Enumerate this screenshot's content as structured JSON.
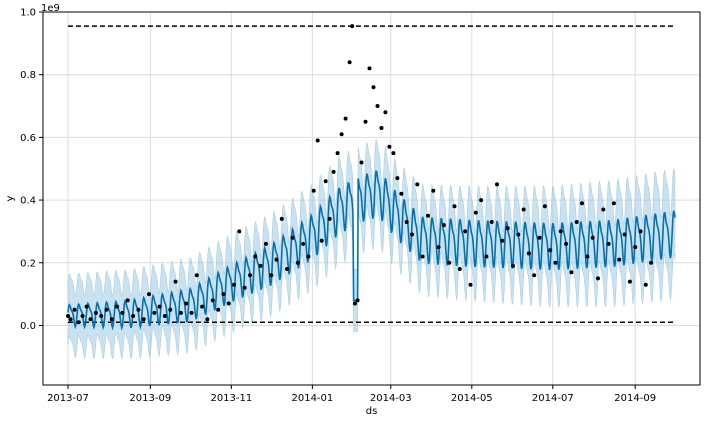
{
  "chart_data": {
    "type": "line",
    "title": "",
    "xlabel": "ds",
    "ylabel": "y",
    "y_offset_label": "1e9",
    "xlim": [
      "2013-07-01",
      "2014-10-01"
    ],
    "ylim": [
      -0.19,
      1.0
    ],
    "grid": true,
    "x_ticks": [
      {
        "date": "2013-07-01",
        "label": "2013-07"
      },
      {
        "date": "2013-09-01",
        "label": "2013-09"
      },
      {
        "date": "2013-11-01",
        "label": "2013-11"
      },
      {
        "date": "2014-01-01",
        "label": "2014-01"
      },
      {
        "date": "2014-03-01",
        "label": "2014-03"
      },
      {
        "date": "2014-05-01",
        "label": "2014-05"
      },
      {
        "date": "2014-07-01",
        "label": "2014-07"
      },
      {
        "date": "2014-09-01",
        "label": "2014-09"
      }
    ],
    "y_ticks": [
      {
        "value": 0.0,
        "label": "0.0"
      },
      {
        "value": 0.2,
        "label": "0.2"
      },
      {
        "value": 0.4,
        "label": "0.4"
      },
      {
        "value": 0.6,
        "label": "0.6"
      },
      {
        "value": 0.8,
        "label": "0.8"
      },
      {
        "value": 1.0,
        "label": "1.0"
      }
    ],
    "cap": 0.955,
    "floor": 0.01,
    "colors": {
      "forecast": "#0072B2",
      "band": "#9ec9e2",
      "points": "#000000",
      "limits": "#000000",
      "grid": "#dddddd"
    },
    "observed": [
      {
        "x": "2013-07-01",
        "y": 0.03
      },
      {
        "x": "2013-07-03",
        "y": 0.02
      },
      {
        "x": "2013-07-06",
        "y": 0.05
      },
      {
        "x": "2013-07-09",
        "y": 0.01
      },
      {
        "x": "2013-07-12",
        "y": 0.03
      },
      {
        "x": "2013-07-15",
        "y": 0.06
      },
      {
        "x": "2013-07-18",
        "y": 0.02
      },
      {
        "x": "2013-07-22",
        "y": 0.04
      },
      {
        "x": "2013-07-26",
        "y": 0.03
      },
      {
        "x": "2013-07-30",
        "y": 0.05
      },
      {
        "x": "2013-08-03",
        "y": 0.02
      },
      {
        "x": "2013-08-07",
        "y": 0.06
      },
      {
        "x": "2013-08-11",
        "y": 0.04
      },
      {
        "x": "2013-08-15",
        "y": 0.08
      },
      {
        "x": "2013-08-19",
        "y": 0.03
      },
      {
        "x": "2013-08-23",
        "y": 0.05
      },
      {
        "x": "2013-08-27",
        "y": 0.02
      },
      {
        "x": "2013-08-31",
        "y": 0.1
      },
      {
        "x": "2013-09-04",
        "y": 0.04
      },
      {
        "x": "2013-09-08",
        "y": 0.06
      },
      {
        "x": "2013-09-12",
        "y": 0.03
      },
      {
        "x": "2013-09-16",
        "y": 0.05
      },
      {
        "x": "2013-09-20",
        "y": 0.14
      },
      {
        "x": "2013-09-24",
        "y": 0.04
      },
      {
        "x": "2013-09-28",
        "y": 0.07
      },
      {
        "x": "2013-10-02",
        "y": 0.04
      },
      {
        "x": "2013-10-06",
        "y": 0.16
      },
      {
        "x": "2013-10-10",
        "y": 0.06
      },
      {
        "x": "2013-10-14",
        "y": 0.02
      },
      {
        "x": "2013-10-18",
        "y": 0.08
      },
      {
        "x": "2013-10-22",
        "y": 0.05
      },
      {
        "x": "2013-10-26",
        "y": 0.1
      },
      {
        "x": "2013-10-30",
        "y": 0.07
      },
      {
        "x": "2013-11-03",
        "y": 0.13
      },
      {
        "x": "2013-11-07",
        "y": 0.3
      },
      {
        "x": "2013-11-11",
        "y": 0.12
      },
      {
        "x": "2013-11-15",
        "y": 0.16
      },
      {
        "x": "2013-11-19",
        "y": 0.22
      },
      {
        "x": "2013-11-23",
        "y": 0.19
      },
      {
        "x": "2013-11-27",
        "y": 0.26
      },
      {
        "x": "2013-12-01",
        "y": 0.16
      },
      {
        "x": "2013-12-05",
        "y": 0.21
      },
      {
        "x": "2013-12-09",
        "y": 0.34
      },
      {
        "x": "2013-12-13",
        "y": 0.18
      },
      {
        "x": "2013-12-17",
        "y": 0.28
      },
      {
        "x": "2013-12-21",
        "y": 0.2
      },
      {
        "x": "2013-12-25",
        "y": 0.26
      },
      {
        "x": "2013-12-29",
        "y": 0.22
      },
      {
        "x": "2014-01-02",
        "y": 0.43
      },
      {
        "x": "2014-01-05",
        "y": 0.59
      },
      {
        "x": "2014-01-08",
        "y": 0.27
      },
      {
        "x": "2014-01-11",
        "y": 0.46
      },
      {
        "x": "2014-01-14",
        "y": 0.34
      },
      {
        "x": "2014-01-17",
        "y": 0.49
      },
      {
        "x": "2014-01-20",
        "y": 0.55
      },
      {
        "x": "2014-01-23",
        "y": 0.61
      },
      {
        "x": "2014-01-26",
        "y": 0.66
      },
      {
        "x": "2014-01-29",
        "y": 0.84
      },
      {
        "x": "2014-01-31",
        "y": 0.955
      },
      {
        "x": "2014-02-02",
        "y": 0.07
      },
      {
        "x": "2014-02-04",
        "y": 0.08
      },
      {
        "x": "2014-02-07",
        "y": 0.52
      },
      {
        "x": "2014-02-10",
        "y": 0.65
      },
      {
        "x": "2014-02-13",
        "y": 0.82
      },
      {
        "x": "2014-02-16",
        "y": 0.76
      },
      {
        "x": "2014-02-19",
        "y": 0.7
      },
      {
        "x": "2014-02-22",
        "y": 0.63
      },
      {
        "x": "2014-02-25",
        "y": 0.68
      },
      {
        "x": "2014-02-28",
        "y": 0.57
      },
      {
        "x": "2014-03-03",
        "y": 0.55
      },
      {
        "x": "2014-03-06",
        "y": 0.47
      },
      {
        "x": "2014-03-09",
        "y": 0.42
      },
      {
        "x": "2014-03-13",
        "y": 0.33
      },
      {
        "x": "2014-03-17",
        "y": 0.29
      },
      {
        "x": "2014-03-21",
        "y": 0.45
      },
      {
        "x": "2014-03-25",
        "y": 0.22
      },
      {
        "x": "2014-03-29",
        "y": 0.35
      },
      {
        "x": "2014-04-02",
        "y": 0.43
      },
      {
        "x": "2014-04-06",
        "y": 0.25
      },
      {
        "x": "2014-04-10",
        "y": 0.32
      },
      {
        "x": "2014-04-14",
        "y": 0.2
      },
      {
        "x": "2014-04-18",
        "y": 0.38
      },
      {
        "x": "2014-04-22",
        "y": 0.18
      },
      {
        "x": "2014-04-26",
        "y": 0.3
      },
      {
        "x": "2014-04-30",
        "y": 0.13
      },
      {
        "x": "2014-05-04",
        "y": 0.36
      },
      {
        "x": "2014-05-08",
        "y": 0.4
      },
      {
        "x": "2014-05-12",
        "y": 0.22
      },
      {
        "x": "2014-05-16",
        "y": 0.33
      },
      {
        "x": "2014-05-20",
        "y": 0.45
      },
      {
        "x": "2014-05-24",
        "y": 0.27
      },
      {
        "x": "2014-05-28",
        "y": 0.31
      },
      {
        "x": "2014-06-01",
        "y": 0.19
      },
      {
        "x": "2014-06-05",
        "y": 0.29
      },
      {
        "x": "2014-06-09",
        "y": 0.37
      },
      {
        "x": "2014-06-13",
        "y": 0.23
      },
      {
        "x": "2014-06-17",
        "y": 0.16
      },
      {
        "x": "2014-06-21",
        "y": 0.28
      },
      {
        "x": "2014-06-25",
        "y": 0.38
      },
      {
        "x": "2014-06-29",
        "y": 0.24
      },
      {
        "x": "2014-07-03",
        "y": 0.2
      },
      {
        "x": "2014-07-07",
        "y": 0.3
      },
      {
        "x": "2014-07-11",
        "y": 0.26
      },
      {
        "x": "2014-07-15",
        "y": 0.17
      },
      {
        "x": "2014-07-19",
        "y": 0.33
      },
      {
        "x": "2014-07-23",
        "y": 0.39
      },
      {
        "x": "2014-07-27",
        "y": 0.22
      },
      {
        "x": "2014-07-31",
        "y": 0.28
      },
      {
        "x": "2014-08-04",
        "y": 0.15
      },
      {
        "x": "2014-08-08",
        "y": 0.37
      },
      {
        "x": "2014-08-12",
        "y": 0.26
      },
      {
        "x": "2014-08-16",
        "y": 0.39
      },
      {
        "x": "2014-08-20",
        "y": 0.21
      },
      {
        "x": "2014-08-24",
        "y": 0.29
      },
      {
        "x": "2014-08-28",
        "y": 0.14
      },
      {
        "x": "2014-09-01",
        "y": 0.25
      },
      {
        "x": "2014-09-05",
        "y": 0.3
      },
      {
        "x": "2014-09-09",
        "y": 0.13
      },
      {
        "x": "2014-09-13",
        "y": 0.2
      }
    ]
  }
}
